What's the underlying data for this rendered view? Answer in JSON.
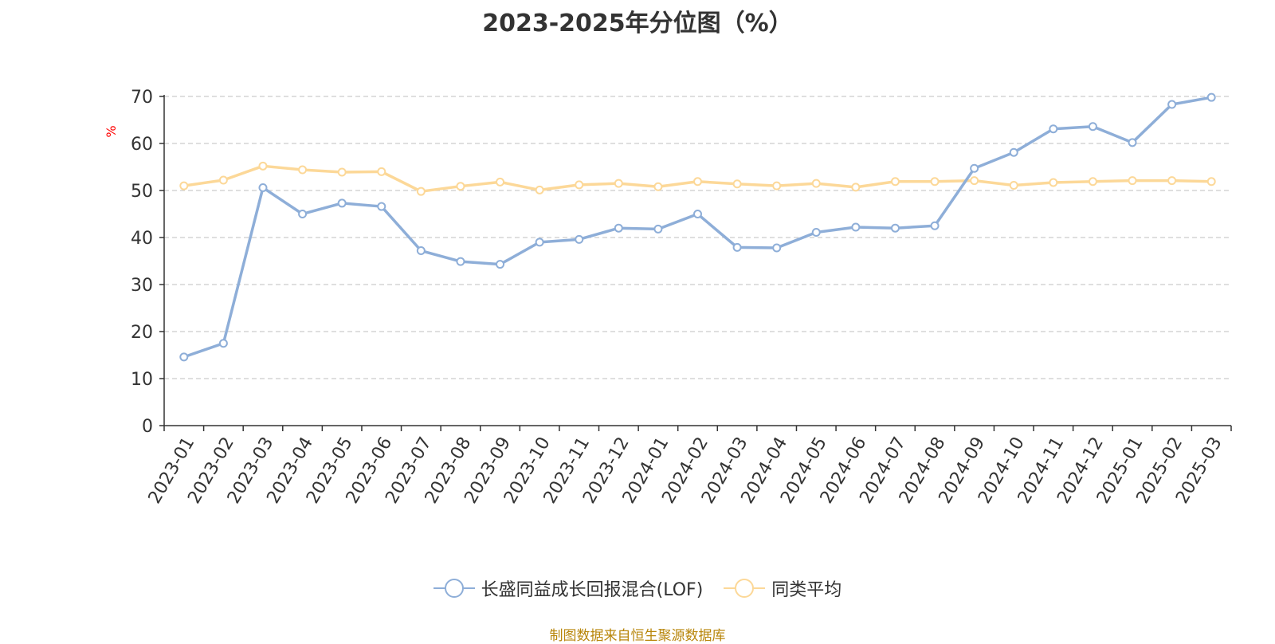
{
  "title": "2023-2025年分位图（%）",
  "source": "制图数据来自恒生聚源数据库",
  "colors": {
    "fund": "#8eaed8",
    "avg": "#fcd898",
    "axis": "#333333",
    "grid": "#cccccc",
    "unit": "#ff0000"
  },
  "chart_data": {
    "type": "line",
    "ylabel": "%",
    "ylim": [
      0,
      70
    ],
    "yticks": [
      0,
      10,
      20,
      30,
      40,
      50,
      60,
      70
    ],
    "grid": true,
    "legend_position": "bottom",
    "categories": [
      "2023-01",
      "2023-02",
      "2023-03",
      "2023-04",
      "2023-05",
      "2023-06",
      "2023-07",
      "2023-08",
      "2023-09",
      "2023-10",
      "2023-11",
      "2023-12",
      "2024-01",
      "2024-02",
      "2024-03",
      "2024-04",
      "2024-05",
      "2024-06",
      "2024-07",
      "2024-08",
      "2024-09",
      "2024-10",
      "2024-11",
      "2024-12",
      "2025-01",
      "2025-02",
      "2025-03"
    ],
    "series": [
      {
        "name": "长盛同益成长回报混合(LOF)",
        "values": [
          14.6,
          17.5,
          50.6,
          45.0,
          47.3,
          46.6,
          37.2,
          34.9,
          34.3,
          39.0,
          39.6,
          42.0,
          41.8,
          45.0,
          37.9,
          37.8,
          41.1,
          42.2,
          42.0,
          42.5,
          54.7,
          58.1,
          63.1,
          63.6,
          60.2,
          68.3,
          69.8
        ]
      },
      {
        "name": "同类平均",
        "values": [
          51.0,
          52.2,
          55.2,
          54.4,
          53.9,
          54.0,
          49.8,
          50.9,
          51.8,
          50.1,
          51.2,
          51.5,
          50.8,
          51.9,
          51.4,
          51.0,
          51.5,
          50.7,
          51.9,
          51.9,
          52.1,
          51.1,
          51.7,
          51.9,
          52.1,
          52.1,
          51.9
        ]
      }
    ]
  }
}
